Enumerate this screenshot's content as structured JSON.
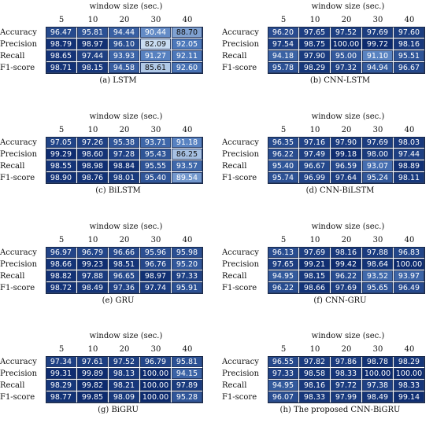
{
  "colors": {
    "low": "#c9dcf1",
    "mid": "#4f7bbd",
    "high": "#0c2a6e"
  },
  "chart_data": [
    {
      "type": "heatmap",
      "title": "window size (sec.)",
      "caption": "(a) LSTM",
      "columns": [
        "5",
        "10",
        "20",
        "30",
        "40"
      ],
      "rows": [
        "Accuracy",
        "Precision",
        "Recall",
        "F1-score"
      ],
      "values": [
        [
          "96.47",
          "95.81",
          "94.44",
          "90.44",
          "88.70"
        ],
        [
          "98.79",
          "98.97",
          "96.10",
          "82.09",
          "92.05"
        ],
        [
          "98.65",
          "97.44",
          "93.93",
          "91.27",
          "92.11"
        ],
        [
          "98.71",
          "98.15",
          "94.58",
          "85.61",
          "92.60"
        ]
      ]
    },
    {
      "type": "heatmap",
      "title": "window size (sec.)",
      "caption": "(b) CNN-LSTM",
      "columns": [
        "5",
        "10",
        "20",
        "30",
        "40"
      ],
      "rows": [
        "Accuracy",
        "Precision",
        "Recall",
        "F1-score"
      ],
      "values": [
        [
          "96.20",
          "97.65",
          "97.52",
          "97.69",
          "97.60"
        ],
        [
          "97.54",
          "98.75",
          "100.00",
          "99.72",
          "98.16"
        ],
        [
          "94.18",
          "97.90",
          "95.00",
          "91.10",
          "95.51"
        ],
        [
          "95.78",
          "98.29",
          "97.32",
          "94.94",
          "96.67"
        ]
      ]
    },
    {
      "type": "heatmap",
      "title": "window size (sec.)",
      "caption": "(c) BiLSTM",
      "columns": [
        "5",
        "10",
        "20",
        "30",
        "40"
      ],
      "rows": [
        "Accuracy",
        "Precision",
        "Recall",
        "F1-score"
      ],
      "values": [
        [
          "97.05",
          "97.26",
          "95.38",
          "93.71",
          "91.18"
        ],
        [
          "99.29",
          "98.60",
          "97.28",
          "95.43",
          "86.25"
        ],
        [
          "98.55",
          "98.98",
          "98.84",
          "95.55",
          "93.57"
        ],
        [
          "98.90",
          "98.76",
          "98.01",
          "95.40",
          "89.54"
        ]
      ]
    },
    {
      "type": "heatmap",
      "title": "window size (sec.)",
      "caption": "(d) CNN-BiLSTM",
      "columns": [
        "5",
        "10",
        "20",
        "30",
        "40"
      ],
      "rows": [
        "Accuracy",
        "Precision",
        "Recall",
        "F1-score"
      ],
      "values": [
        [
          "96.35",
          "97.16",
          "97.90",
          "97.69",
          "98.03"
        ],
        [
          "96.22",
          "97.49",
          "99.18",
          "98.00",
          "97.44"
        ],
        [
          "95.40",
          "96.67",
          "96.59",
          "93.07",
          "98.89"
        ],
        [
          "95.74",
          "96.99",
          "97.64",
          "95.24",
          "98.11"
        ]
      ]
    },
    {
      "type": "heatmap",
      "title": "window size (sec.)",
      "caption": "(e) GRU",
      "columns": [
        "5",
        "10",
        "20",
        "30",
        "40"
      ],
      "rows": [
        "Accuracy",
        "Precision",
        "Recall",
        "F1-score"
      ],
      "values": [
        [
          "96.97",
          "96.79",
          "96.66",
          "95.96",
          "95.98"
        ],
        [
          "98.66",
          "99.23",
          "98.51",
          "96.76",
          "95.20"
        ],
        [
          "98.82",
          "97.88",
          "96.65",
          "98.97",
          "97.33"
        ],
        [
          "98.72",
          "98.49",
          "97.36",
          "97.74",
          "95.91"
        ]
      ]
    },
    {
      "type": "heatmap",
      "title": "window size (sec.)",
      "caption": "(f) CNN-GRU",
      "columns": [
        "5",
        "10",
        "20",
        "30",
        "40"
      ],
      "rows": [
        "Accuracy",
        "Precision",
        "Recall",
        "F1-score"
      ],
      "values": [
        [
          "96.13",
          "97.69",
          "98.16",
          "97.88",
          "96.83"
        ],
        [
          "97.65",
          "99.21",
          "99.42",
          "98.64",
          "100.00"
        ],
        [
          "94.95",
          "98.15",
          "96.22",
          "93.52",
          "93.97"
        ],
        [
          "96.22",
          "98.66",
          "97.69",
          "95.65",
          "96.49"
        ]
      ]
    },
    {
      "type": "heatmap",
      "title": "window size (sec.)",
      "caption": "(g) BiGRU",
      "columns": [
        "5",
        "10",
        "20",
        "30",
        "40"
      ],
      "rows": [
        "Accuracy",
        "Precision",
        "Recall",
        "F1-score"
      ],
      "values": [
        [
          "97.34",
          "97.61",
          "97.52",
          "96.79",
          "95.81"
        ],
        [
          "99.31",
          "99.89",
          "98.13",
          "100.00",
          "94.15"
        ],
        [
          "98.29",
          "99.82",
          "98.21",
          "100.00",
          "97.89"
        ],
        [
          "98.77",
          "99.85",
          "98.09",
          "100.00",
          "95.28"
        ]
      ]
    },
    {
      "type": "heatmap",
      "title": "window size (sec.)",
      "caption": "(h) The proposed CNN-BiGRU",
      "columns": [
        "5",
        "10",
        "20",
        "30",
        "40"
      ],
      "rows": [
        "Accuracy",
        "Precision",
        "Recall",
        "F1-score"
      ],
      "values": [
        [
          "96.55",
          "97.82",
          "97.86",
          "98.78",
          "98.29"
        ],
        [
          "97.33",
          "98.58",
          "98.33",
          "100.00",
          "100.00"
        ],
        [
          "94.95",
          "98.16",
          "97.72",
          "97.38",
          "98.33"
        ],
        [
          "96.07",
          "98.33",
          "97.99",
          "98.49",
          "99.14"
        ]
      ]
    }
  ]
}
